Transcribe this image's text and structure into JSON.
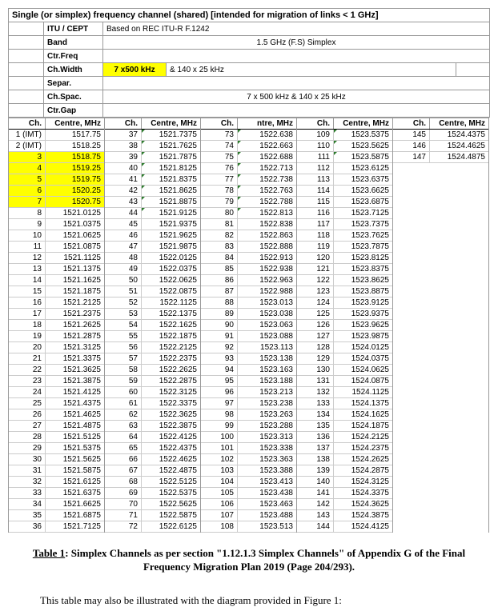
{
  "title": "Single (or simplex) frequency channel (shared) [intended for migration of links < 1 GHz]",
  "meta": {
    "itu_label": "ITU / CEPT",
    "itu_val": "Based on REC ITU-R F.1242",
    "band_label": "Band",
    "band_val": "1.5 GHz (F.S) Simplex",
    "ctrfreq_label": "Ctr.Freq",
    "chwidth_label": "Ch.Width",
    "chwidth_val1": "7 x500 kHz",
    "chwidth_val2": "& 140 x 25 kHz",
    "separ_label": "Separ.",
    "chspac_label": "Ch.Spac.",
    "chspac_val": "7 x 500 kHz & 140 x 25 kHz",
    "ctrgap_label": "Ctr.Gap"
  },
  "headers": {
    "ch": "Ch.",
    "ctr": "Centre, MHz",
    "ctr3": "ntre, MHz"
  },
  "columns": [
    {
      "rows": [
        {
          "ch": "1 (IMT)",
          "ctr": "1517.75"
        },
        {
          "ch": "2 (IMT)",
          "ctr": "1518.25"
        },
        {
          "ch": "3",
          "ctr": "1518.75",
          "hl": true
        },
        {
          "ch": "4",
          "ctr": "1519.25",
          "hl": true
        },
        {
          "ch": "5",
          "ctr": "1519.75",
          "hl": true
        },
        {
          "ch": "6",
          "ctr": "1520.25",
          "hl": true
        },
        {
          "ch": "7",
          "ctr": "1520.75",
          "hl": true
        },
        {
          "ch": "8",
          "ctr": "1521.0125"
        },
        {
          "ch": "9",
          "ctr": "1521.0375"
        },
        {
          "ch": "10",
          "ctr": "1521.0625"
        },
        {
          "ch": "11",
          "ctr": "1521.0875"
        },
        {
          "ch": "12",
          "ctr": "1521.1125"
        },
        {
          "ch": "13",
          "ctr": "1521.1375"
        },
        {
          "ch": "14",
          "ctr": "1521.1625"
        },
        {
          "ch": "15",
          "ctr": "1521.1875"
        },
        {
          "ch": "16",
          "ctr": "1521.2125"
        },
        {
          "ch": "17",
          "ctr": "1521.2375"
        },
        {
          "ch": "18",
          "ctr": "1521.2625"
        },
        {
          "ch": "19",
          "ctr": "1521.2875"
        },
        {
          "ch": "20",
          "ctr": "1521.3125"
        },
        {
          "ch": "21",
          "ctr": "1521.3375"
        },
        {
          "ch": "22",
          "ctr": "1521.3625"
        },
        {
          "ch": "23",
          "ctr": "1521.3875"
        },
        {
          "ch": "24",
          "ctr": "1521.4125"
        },
        {
          "ch": "25",
          "ctr": "1521.4375"
        },
        {
          "ch": "26",
          "ctr": "1521.4625"
        },
        {
          "ch": "27",
          "ctr": "1521.4875"
        },
        {
          "ch": "28",
          "ctr": "1521.5125"
        },
        {
          "ch": "29",
          "ctr": "1521.5375"
        },
        {
          "ch": "30",
          "ctr": "1521.5625"
        },
        {
          "ch": "31",
          "ctr": "1521.5875"
        },
        {
          "ch": "32",
          "ctr": "1521.6125"
        },
        {
          "ch": "33",
          "ctr": "1521.6375"
        },
        {
          "ch": "34",
          "ctr": "1521.6625"
        },
        {
          "ch": "35",
          "ctr": "1521.6875"
        },
        {
          "ch": "36",
          "ctr": "1521.7125"
        }
      ]
    },
    {
      "rows": [
        {
          "ch": "37",
          "ctr": "1521.7375",
          "tick": true
        },
        {
          "ch": "38",
          "ctr": "1521.7625",
          "tick": true
        },
        {
          "ch": "39",
          "ctr": "1521.7875",
          "tick": true
        },
        {
          "ch": "40",
          "ctr": "1521.8125",
          "tick": true
        },
        {
          "ch": "41",
          "ctr": "1521.8375",
          "tick": true
        },
        {
          "ch": "42",
          "ctr": "1521.8625",
          "tick": true
        },
        {
          "ch": "43",
          "ctr": "1521.8875",
          "tick": true
        },
        {
          "ch": "44",
          "ctr": "1521.9125",
          "tick": true
        },
        {
          "ch": "45",
          "ctr": "1521.9375"
        },
        {
          "ch": "46",
          "ctr": "1521.9625"
        },
        {
          "ch": "47",
          "ctr": "1521.9875"
        },
        {
          "ch": "48",
          "ctr": "1522.0125"
        },
        {
          "ch": "49",
          "ctr": "1522.0375"
        },
        {
          "ch": "50",
          "ctr": "1522.0625"
        },
        {
          "ch": "51",
          "ctr": "1522.0875"
        },
        {
          "ch": "52",
          "ctr": "1522.1125"
        },
        {
          "ch": "53",
          "ctr": "1522.1375"
        },
        {
          "ch": "54",
          "ctr": "1522.1625"
        },
        {
          "ch": "55",
          "ctr": "1522.1875"
        },
        {
          "ch": "56",
          "ctr": "1522.2125"
        },
        {
          "ch": "57",
          "ctr": "1522.2375"
        },
        {
          "ch": "58",
          "ctr": "1522.2625"
        },
        {
          "ch": "59",
          "ctr": "1522.2875"
        },
        {
          "ch": "60",
          "ctr": "1522.3125"
        },
        {
          "ch": "61",
          "ctr": "1522.3375"
        },
        {
          "ch": "62",
          "ctr": "1522.3625"
        },
        {
          "ch": "63",
          "ctr": "1522.3875"
        },
        {
          "ch": "64",
          "ctr": "1522.4125"
        },
        {
          "ch": "65",
          "ctr": "1522.4375"
        },
        {
          "ch": "66",
          "ctr": "1522.4625"
        },
        {
          "ch": "67",
          "ctr": "1522.4875"
        },
        {
          "ch": "68",
          "ctr": "1522.5125"
        },
        {
          "ch": "69",
          "ctr": "1522.5375"
        },
        {
          "ch": "70",
          "ctr": "1522.5625"
        },
        {
          "ch": "71",
          "ctr": "1522.5875"
        },
        {
          "ch": "72",
          "ctr": "1522.6125"
        }
      ]
    },
    {
      "rows": [
        {
          "ch": "73",
          "ctr": "1522.638",
          "tick": true
        },
        {
          "ch": "74",
          "ctr": "1522.663",
          "tick": true
        },
        {
          "ch": "75",
          "ctr": "1522.688",
          "tick": true
        },
        {
          "ch": "76",
          "ctr": "1522.713",
          "tick": true
        },
        {
          "ch": "77",
          "ctr": "1522.738",
          "tick": true
        },
        {
          "ch": "78",
          "ctr": "1522.763",
          "tick": true
        },
        {
          "ch": "79",
          "ctr": "1522.788",
          "tick": true
        },
        {
          "ch": "80",
          "ctr": "1522.813",
          "tick": true
        },
        {
          "ch": "81",
          "ctr": "1522.838"
        },
        {
          "ch": "82",
          "ctr": "1522.863"
        },
        {
          "ch": "83",
          "ctr": "1522.888"
        },
        {
          "ch": "84",
          "ctr": "1522.913"
        },
        {
          "ch": "85",
          "ctr": "1522.938"
        },
        {
          "ch": "86",
          "ctr": "1522.963"
        },
        {
          "ch": "87",
          "ctr": "1522.988"
        },
        {
          "ch": "88",
          "ctr": "1523.013"
        },
        {
          "ch": "89",
          "ctr": "1523.038"
        },
        {
          "ch": "90",
          "ctr": "1523.063"
        },
        {
          "ch": "91",
          "ctr": "1523.088"
        },
        {
          "ch": "92",
          "ctr": "1523.113"
        },
        {
          "ch": "93",
          "ctr": "1523.138"
        },
        {
          "ch": "94",
          "ctr": "1523.163"
        },
        {
          "ch": "95",
          "ctr": "1523.188"
        },
        {
          "ch": "96",
          "ctr": "1523.213"
        },
        {
          "ch": "97",
          "ctr": "1523.238"
        },
        {
          "ch": "98",
          "ctr": "1523.263"
        },
        {
          "ch": "99",
          "ctr": "1523.288"
        },
        {
          "ch": "100",
          "ctr": "1523.313"
        },
        {
          "ch": "101",
          "ctr": "1523.338"
        },
        {
          "ch": "102",
          "ctr": "1523.363"
        },
        {
          "ch": "103",
          "ctr": "1523.388"
        },
        {
          "ch": "104",
          "ctr": "1523.413"
        },
        {
          "ch": "105",
          "ctr": "1523.438"
        },
        {
          "ch": "106",
          "ctr": "1523.463"
        },
        {
          "ch": "107",
          "ctr": "1523.488"
        },
        {
          "ch": "108",
          "ctr": "1523.513"
        }
      ]
    },
    {
      "rows": [
        {
          "ch": "109",
          "ctr": "1523.5375",
          "tick": true
        },
        {
          "ch": "110",
          "ctr": "1523.5625",
          "tick": true
        },
        {
          "ch": "111",
          "ctr": "1523.5875",
          "tick": true
        },
        {
          "ch": "112",
          "ctr": "1523.6125"
        },
        {
          "ch": "113",
          "ctr": "1523.6375"
        },
        {
          "ch": "114",
          "ctr": "1523.6625"
        },
        {
          "ch": "115",
          "ctr": "1523.6875"
        },
        {
          "ch": "116",
          "ctr": "1523.7125"
        },
        {
          "ch": "117",
          "ctr": "1523.7375"
        },
        {
          "ch": "118",
          "ctr": "1523.7625"
        },
        {
          "ch": "119",
          "ctr": "1523.7875"
        },
        {
          "ch": "120",
          "ctr": "1523.8125"
        },
        {
          "ch": "121",
          "ctr": "1523.8375"
        },
        {
          "ch": "122",
          "ctr": "1523.8625"
        },
        {
          "ch": "123",
          "ctr": "1523.8875"
        },
        {
          "ch": "124",
          "ctr": "1523.9125"
        },
        {
          "ch": "125",
          "ctr": "1523.9375"
        },
        {
          "ch": "126",
          "ctr": "1523.9625"
        },
        {
          "ch": "127",
          "ctr": "1523.9875"
        },
        {
          "ch": "128",
          "ctr": "1524.0125"
        },
        {
          "ch": "129",
          "ctr": "1524.0375"
        },
        {
          "ch": "130",
          "ctr": "1524.0625"
        },
        {
          "ch": "131",
          "ctr": "1524.0875"
        },
        {
          "ch": "132",
          "ctr": "1524.1125"
        },
        {
          "ch": "133",
          "ctr": "1524.1375"
        },
        {
          "ch": "134",
          "ctr": "1524.1625"
        },
        {
          "ch": "135",
          "ctr": "1524.1875"
        },
        {
          "ch": "136",
          "ctr": "1524.2125"
        },
        {
          "ch": "137",
          "ctr": "1524.2375"
        },
        {
          "ch": "138",
          "ctr": "1524.2625"
        },
        {
          "ch": "139",
          "ctr": "1524.2875"
        },
        {
          "ch": "140",
          "ctr": "1524.3125"
        },
        {
          "ch": "141",
          "ctr": "1524.3375"
        },
        {
          "ch": "142",
          "ctr": "1524.3625"
        },
        {
          "ch": "143",
          "ctr": "1524.3875"
        },
        {
          "ch": "144",
          "ctr": "1524.4125"
        }
      ]
    },
    {
      "rows": [
        {
          "ch": "145",
          "ctr": "1524.4375"
        },
        {
          "ch": "146",
          "ctr": "1524.4625"
        },
        {
          "ch": "147",
          "ctr": "1524.4875"
        }
      ]
    }
  ],
  "caption_label": "Table 1",
  "caption_text": ": Simplex Channels as per section \"1.12.1.3 Simplex Channels\" of Appendix G of the Final Frequency Migration Plan 2019 (Page 204/293).",
  "subtext": "This table may also be illustrated with the diagram provided in Figure 1:"
}
